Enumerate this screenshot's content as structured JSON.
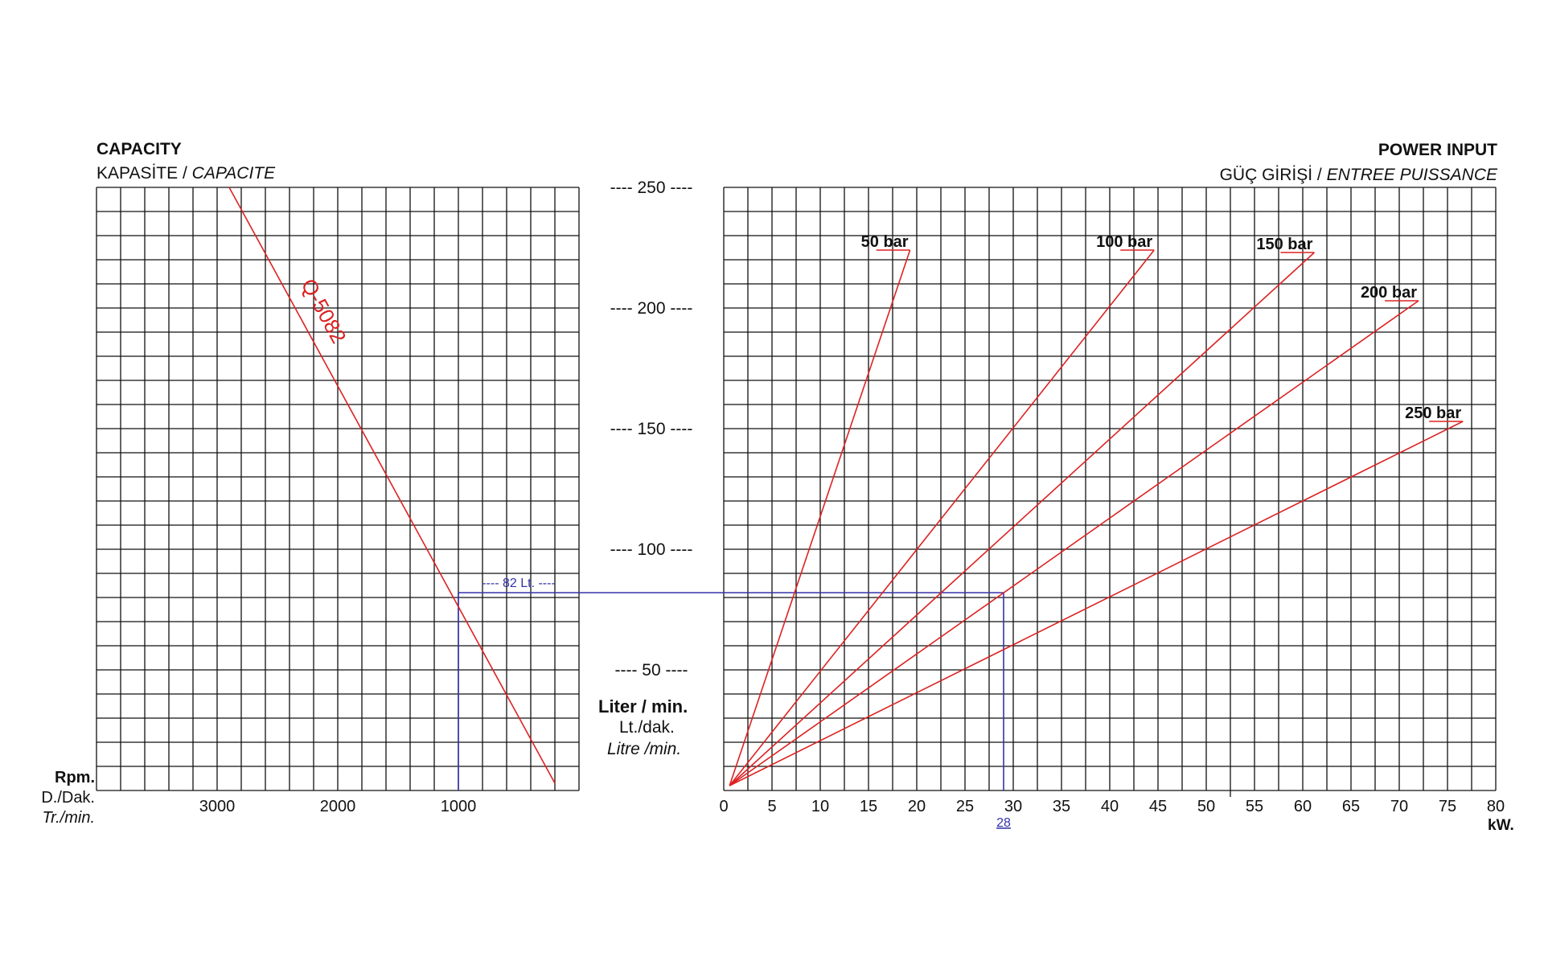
{
  "left_panel": {
    "title": "CAPACITY",
    "subtitle_tr": "KAPASİTE /",
    "subtitle_fr": "CAPACITE",
    "rpm_label": "Rpm.",
    "rpm_label_tr": "D./Dak.",
    "rpm_label_fr": "Tr./min."
  },
  "right_panel": {
    "title": "POWER INPUT",
    "subtitle_tr": "GÜÇ GİRİŞİ /",
    "subtitle_fr": "ENTREE PUISSANCE",
    "kw_label": "kW."
  },
  "center_axis": {
    "label": "Liter / min.",
    "label_tr": "Lt./dak.",
    "label_fr": "Litre /min."
  },
  "colors": {
    "curve": "#dd2222",
    "readout": "#3333aa",
    "grid": "#111111"
  },
  "chart_data": [
    {
      "type": "line",
      "title": "CAPACITY",
      "xlabel": "Rpm.",
      "ylabel": "Liter / min.",
      "x_axis_reversed": true,
      "xlim": [
        0,
        4000
      ],
      "ylim": [
        0,
        250
      ],
      "x_ticks": [
        3000,
        2000,
        1000
      ],
      "x_tick_labels": [
        "3000",
        "2000",
        "1000"
      ],
      "y_ticks": [
        50,
        100,
        150,
        200,
        250
      ],
      "y_tick_labels": [
        "---- 50 ----",
        "---- 100 ----",
        "---- 150 ----",
        "---- 200 ----",
        "---- 250 ----"
      ],
      "grid": true,
      "series": [
        {
          "name": "Q-5082",
          "x": [
            2900,
            200
          ],
          "y": [
            250,
            3
          ]
        }
      ],
      "annotations": [
        {
          "text": "82 Lt.",
          "x": 1000,
          "y": 82
        }
      ]
    },
    {
      "type": "line",
      "title": "POWER INPUT",
      "xlabel": "kW.",
      "ylabel": "Liter / min.",
      "xlim": [
        0,
        80
      ],
      "ylim": [
        0,
        250
      ],
      "x_ticks": [
        0,
        5,
        10,
        15,
        20,
        25,
        30,
        35,
        40,
        45,
        50,
        55,
        60,
        65,
        70,
        75,
        80
      ],
      "x_tick_labels": [
        "0",
        "5",
        "10",
        "15",
        "20",
        "25",
        "30",
        "35",
        "40",
        "45",
        "50",
        "55",
        "60",
        "65",
        "70",
        "75",
        "80"
      ],
      "grid": true,
      "series": [
        {
          "name": "50 bar",
          "x": [
            0.6,
            19.3
          ],
          "y": [
            2,
            224
          ]
        },
        {
          "name": "100 bar",
          "x": [
            0.6,
            44.6
          ],
          "y": [
            2,
            224
          ]
        },
        {
          "name": "150 bar",
          "x": [
            0.6,
            61.2
          ],
          "y": [
            2,
            223
          ]
        },
        {
          "name": "200 bar",
          "x": [
            0.6,
            72.0
          ],
          "y": [
            2,
            203
          ]
        },
        {
          "name": "250 bar",
          "x": [
            0.6,
            76.6
          ],
          "y": [
            2,
            153
          ]
        }
      ],
      "annotations": [
        {
          "text": "28",
          "x": 29,
          "y": 82
        }
      ]
    }
  ]
}
